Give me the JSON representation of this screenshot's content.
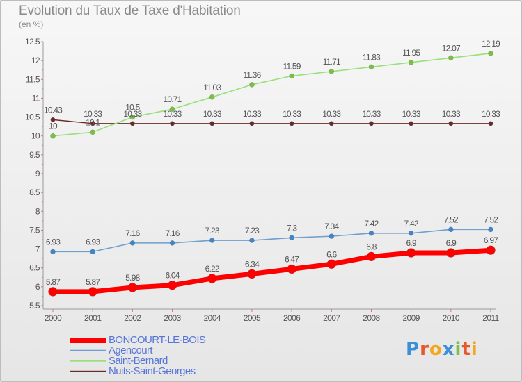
{
  "title": "Evolution du Taux de Taxe d'Habitation",
  "subtitle": "(en %)",
  "logo": {
    "text": "Proxiti",
    "letters": [
      "P",
      "r",
      "o",
      "x",
      "i",
      "t",
      "i"
    ],
    "colors": [
      "#3a8fd6",
      "#e8562a",
      "#f2a81c",
      "#3a8fd6",
      "#7ac043",
      "#e8562a",
      "#f2a81c"
    ]
  },
  "chart_data": {
    "type": "line",
    "title": "Evolution du Taux de Taxe d'Habitation",
    "ylabel": "(en %)",
    "xlabel": "",
    "x": [
      "2000",
      "2001",
      "2002",
      "2003",
      "2004",
      "2005",
      "2006",
      "2007",
      "2008",
      "2009",
      "2010",
      "2011"
    ],
    "ylim": [
      5.5,
      12.5
    ],
    "yticks": [
      "5.5",
      "6",
      "6.5",
      "7",
      "7.5",
      "8",
      "8.5",
      "9",
      "9.5",
      "10",
      "10.5",
      "11",
      "11.5",
      "12",
      "12.5"
    ],
    "legend_position": "bottom-left",
    "grid": false,
    "series": [
      {
        "name": "BONCOURT-LE-BOIS",
        "color": "#ff0000",
        "values": [
          5.87,
          5.87,
          5.98,
          6.04,
          6.22,
          6.34,
          6.47,
          6.6,
          6.8,
          6.9,
          6.9,
          6.97
        ],
        "labels": [
          "5.87",
          "5.87",
          "5.98",
          "6.04",
          "6.22",
          "6.34",
          "6.47",
          "6.6",
          "6.8",
          "6.9",
          "6.9",
          "6.97"
        ]
      },
      {
        "name": "Agencourt",
        "color": "#6f9fd0",
        "values": [
          6.93,
          6.93,
          7.16,
          7.16,
          7.23,
          7.23,
          7.3,
          7.34,
          7.42,
          7.42,
          7.52,
          7.52
        ],
        "labels": [
          "6.93",
          "6.93",
          "7.16",
          "7.16",
          "7.23",
          "7.23",
          "7.3",
          "7.34",
          "7.42",
          "7.42",
          "7.52",
          "7.52"
        ]
      },
      {
        "name": "Saint-Bernard",
        "color": "#98e07a",
        "values": [
          10,
          10.1,
          10.5,
          10.71,
          11.03,
          11.36,
          11.59,
          11.71,
          11.83,
          11.95,
          12.07,
          12.19
        ],
        "labels": [
          "10",
          "10.1",
          "10.5",
          "10.71",
          "11.03",
          "11.36",
          "11.59",
          "11.71",
          "11.83",
          "11.95",
          "12.07",
          "12.19"
        ]
      },
      {
        "name": "Nuits-Saint-Georges",
        "color": "#6b2a2a",
        "values": [
          10.43,
          10.33,
          10.33,
          10.33,
          10.33,
          10.33,
          10.33,
          10.33,
          10.33,
          10.33,
          10.33,
          10.33
        ],
        "labels": [
          "10.43",
          "10.33",
          "10.33",
          "10.33",
          "10.33",
          "10.33",
          "10.33",
          "10.33",
          "10.33",
          "10.33",
          "10.33",
          "10.33"
        ]
      }
    ]
  }
}
